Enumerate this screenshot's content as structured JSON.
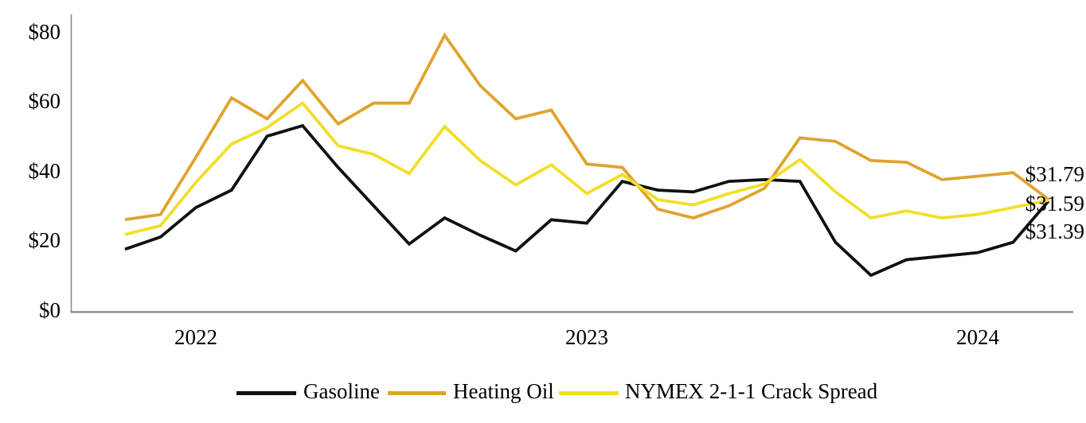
{
  "chart_data": {
    "type": "line",
    "title": "",
    "xlabel": "",
    "ylabel": "",
    "grid": "off",
    "legend_position": "bottom",
    "ylim": [
      0,
      85
    ],
    "y_ticks": [
      {
        "value": 0,
        "label": "$0"
      },
      {
        "value": 20,
        "label": "$20"
      },
      {
        "value": 40,
        "label": "$40"
      },
      {
        "value": 60,
        "label": "$60"
      },
      {
        "value": 80,
        "label": "$80"
      }
    ],
    "x_count": 27,
    "x_year_ticks": [
      {
        "index": 2,
        "label": "2022"
      },
      {
        "index": 13,
        "label": "2023"
      },
      {
        "index": 24,
        "label": "2024"
      }
    ],
    "series": [
      {
        "name": "Gasoline",
        "color": "#111111",
        "values": [
          17.5,
          21,
          29.5,
          34.5,
          50,
          53,
          41,
          30,
          19,
          26.5,
          21.5,
          17,
          26,
          25,
          37,
          34.5,
          34,
          37,
          37.5,
          37,
          19.5,
          10,
          14.5,
          15.5,
          16.5,
          19.5,
          31.39
        ]
      },
      {
        "name": "Heating Oil",
        "color": "#DFA32E",
        "values": [
          26,
          27.5,
          44,
          61,
          55,
          66,
          53.5,
          59.5,
          59.5,
          79,
          64.5,
          55,
          57.5,
          42,
          41,
          29,
          26.5,
          30,
          35,
          49.5,
          48.5,
          43,
          42.5,
          37.5,
          38.5,
          39.5,
          31.79
        ]
      },
      {
        "name": "NYMEX 2-1-1 Crack Spread",
        "color": "#F2DE28",
        "values": [
          21.75,
          24.25,
          36.75,
          47.75,
          52.5,
          59.5,
          47.25,
          44.75,
          39.25,
          52.75,
          43,
          36,
          41.75,
          33.5,
          39,
          31.75,
          30.25,
          33.5,
          36.25,
          43.25,
          34,
          26.5,
          28.5,
          26.5,
          27.5,
          29.5,
          31.59
        ]
      }
    ],
    "end_labels": [
      {
        "text": "$31.79",
        "series": "Heating Oil"
      },
      {
        "text": "$31.59",
        "series": "NYMEX 2-1-1 Crack Spread"
      },
      {
        "text": "$31.39",
        "series": "Gasoline"
      }
    ],
    "axis_color": "#8a8a8a"
  }
}
